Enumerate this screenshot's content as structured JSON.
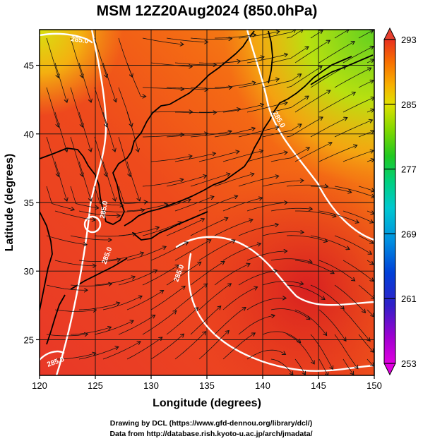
{
  "title": "MSM 12Z20Aug2024 (850.0hPa)",
  "map": {
    "x_axis": {
      "label": "Longitude (degrees)",
      "range": [
        120,
        150
      ],
      "ticks": [
        "120",
        "125",
        "130",
        "135",
        "140",
        "145",
        "150"
      ]
    },
    "y_axis": {
      "label": "Latitude  (degrees)",
      "range": [
        22.4,
        47.6
      ],
      "ticks": [
        "25",
        "30",
        "35",
        "40",
        "45"
      ]
    },
    "grid": true,
    "field": "temperature (shaded) with streamlines",
    "contour_labels": [
      "285.0",
      "285.0",
      "285.0",
      "285.0",
      "285.0",
      "285.0"
    ]
  },
  "colorbar": {
    "range": [
      253,
      293
    ],
    "ticks": [
      "293",
      "285",
      "277",
      "269",
      "261",
      "253"
    ],
    "colors": [
      "#e800e8",
      "#a000d0",
      "#4000c8",
      "#0028d8",
      "#0078e0",
      "#00b8e8",
      "#00d8b0",
      "#00d070",
      "#20c820",
      "#70d800",
      "#b8e000",
      "#f0e000",
      "#f8a000",
      "#f87000",
      "#f04818",
      "#e83020"
    ]
  },
  "credits": {
    "line1": "Drawing by DCL (https://www.gfd-dennou.org/library/dcl/)",
    "line2": "Data from http://database.rish.kyoto-u.ac.jp/arch/jmadata/"
  }
}
